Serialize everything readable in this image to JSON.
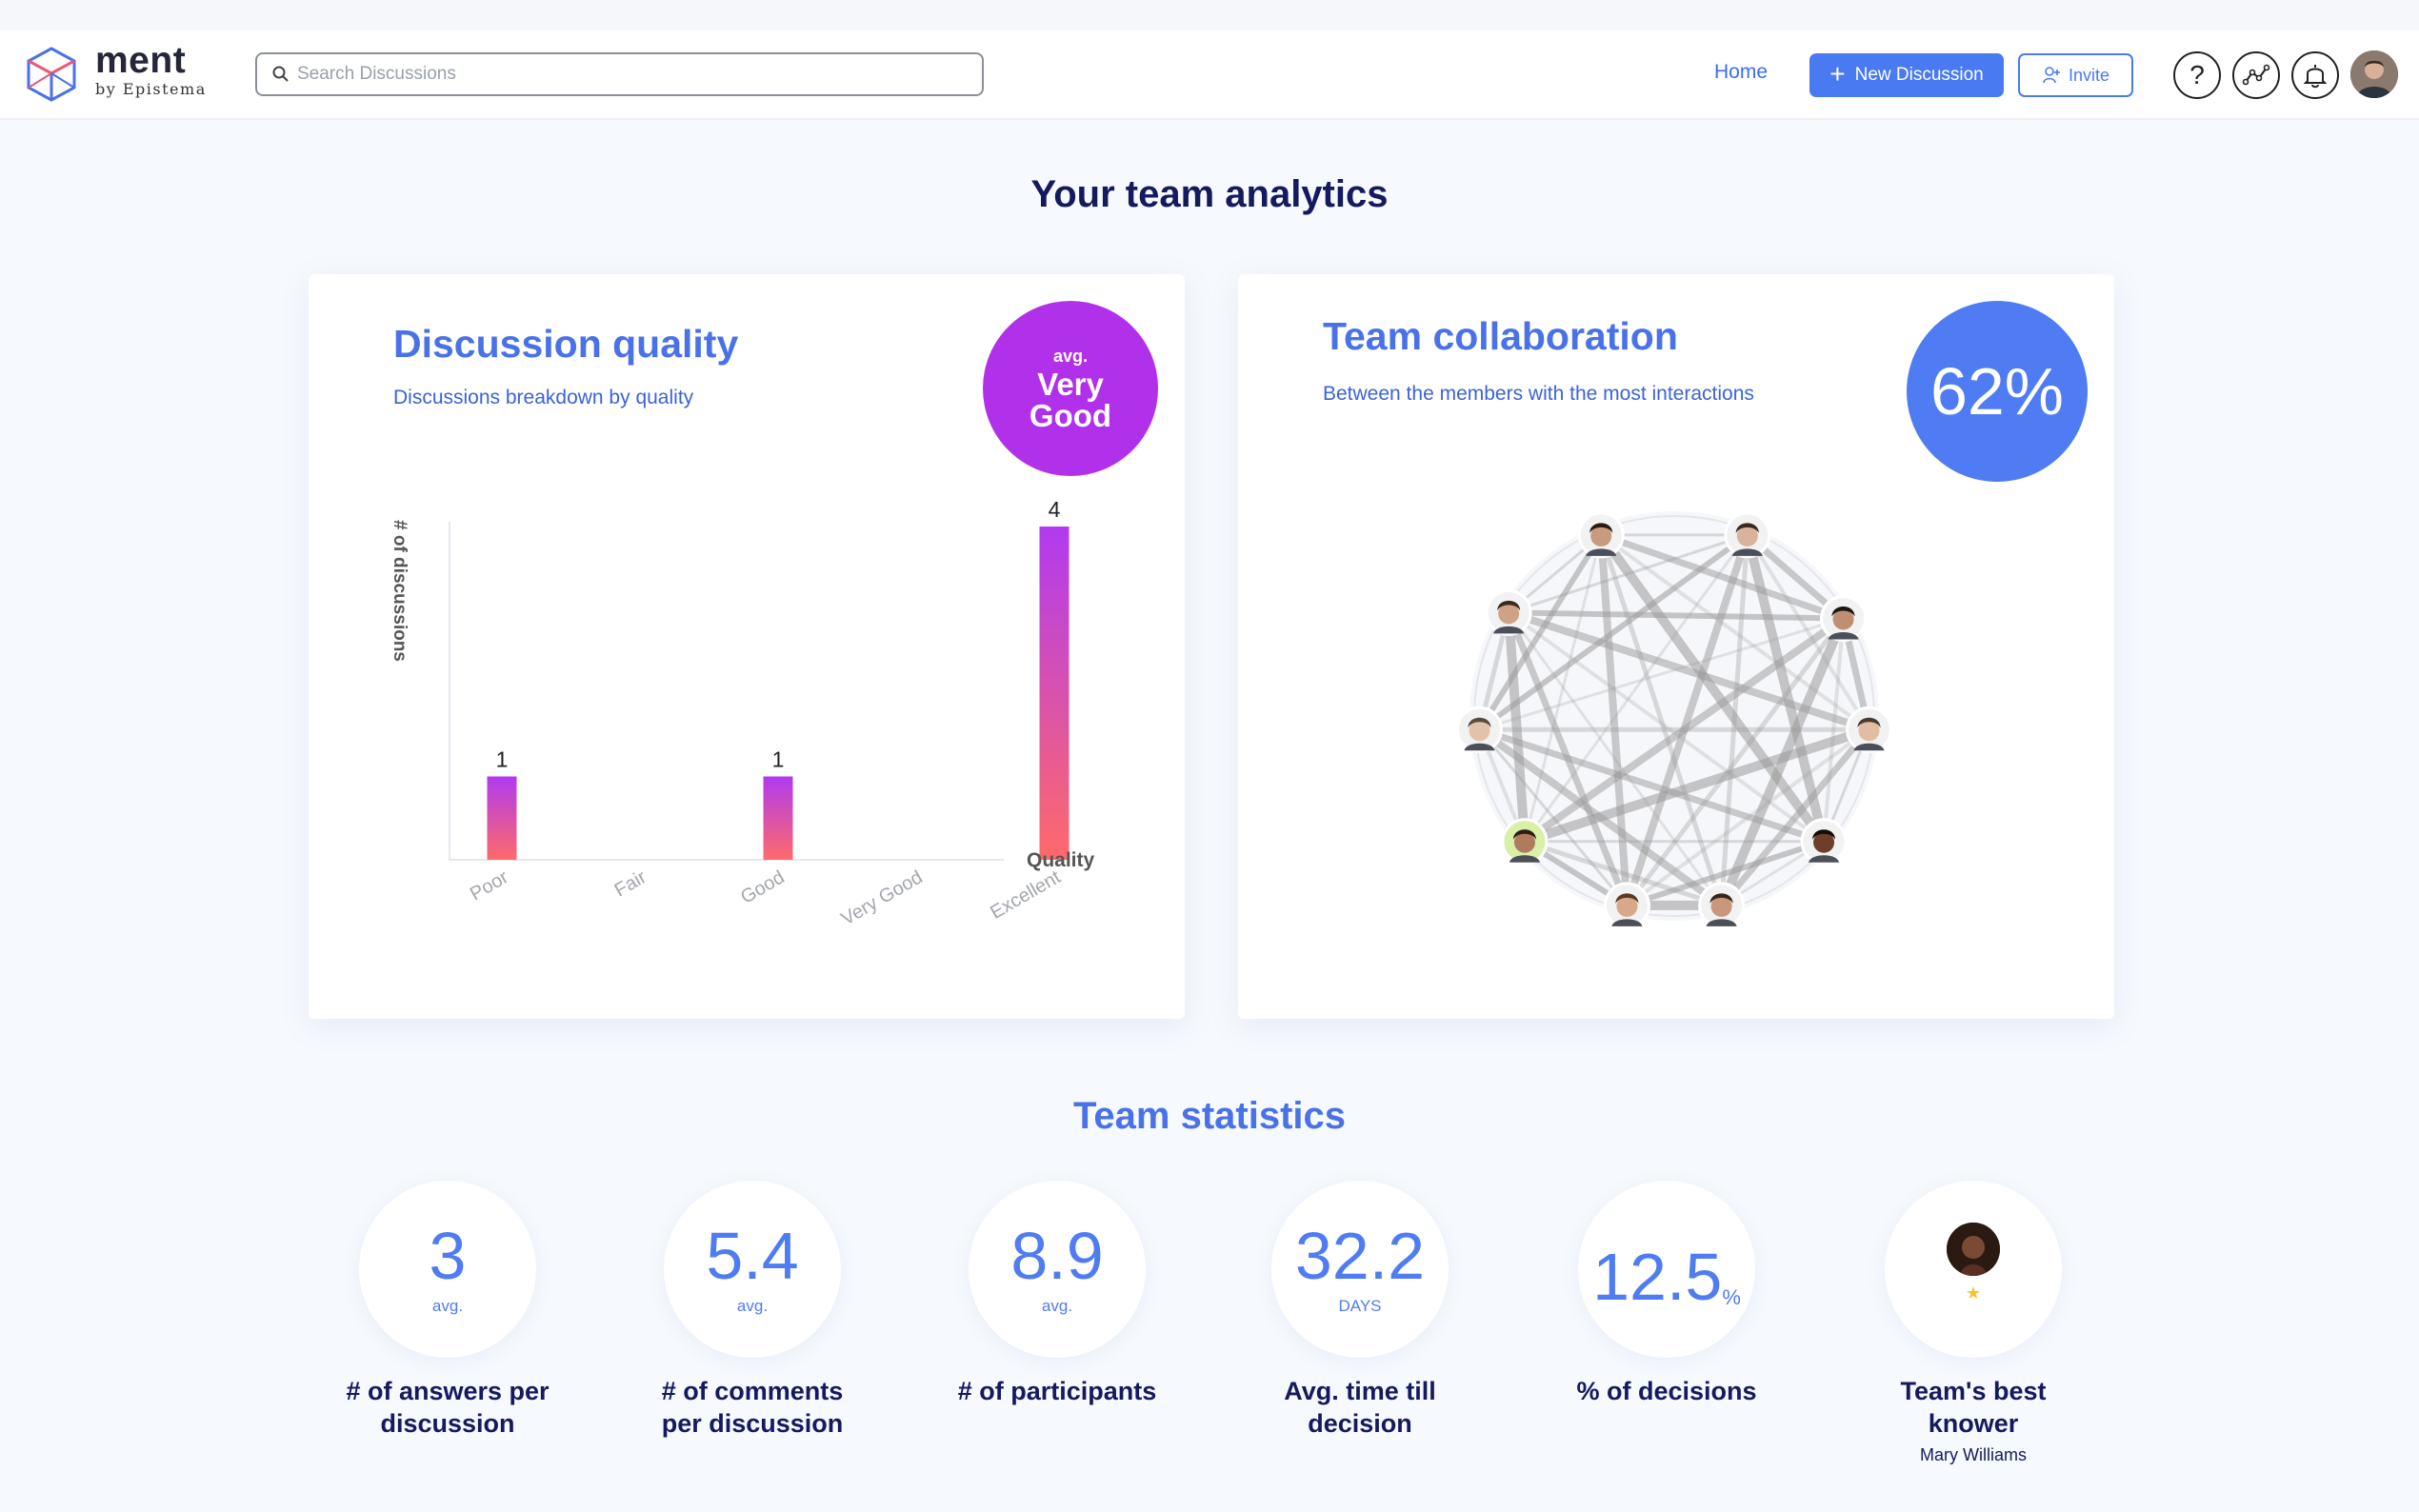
{
  "header": {
    "brand_name": "ment",
    "brand_sub": "by Epistema",
    "search_placeholder": "Search Discussions",
    "search_value": "",
    "nav_home": "Home",
    "new_discussion": "New Discussion",
    "invite": "Invite",
    "help_glyph": "?",
    "icons": [
      "search-icon",
      "plus-icon",
      "invite-user-icon",
      "help-icon",
      "analytics-icon",
      "bell-icon",
      "avatar"
    ]
  },
  "page_title": "Your team analytics",
  "quality_card": {
    "title": "Discussion quality",
    "subtitle": "Discussions breakdown by quality",
    "badge_small": "avg.",
    "badge_line1": "Very",
    "badge_line2": "Good",
    "badge_color": "#b130ea"
  },
  "chart_data": {
    "type": "bar",
    "categories": [
      "Poor",
      "Fair",
      "Good",
      "Very Good",
      "Excellent"
    ],
    "values": [
      1,
      0,
      1,
      0,
      4
    ],
    "data_labels": [
      "1",
      "",
      "1",
      "",
      "4"
    ],
    "xlabel": "Quality",
    "ylabel": "# of discussions",
    "ylim": [
      0,
      4
    ],
    "gradient": [
      "#b13af0",
      "#ff6a6a"
    ]
  },
  "collab_card": {
    "title": "Team collaboration",
    "subtitle": "Between the members with the most interactions",
    "percent": "62%",
    "badge_color": "#4f7cf3",
    "members": 10
  },
  "stats_title": "Team statistics",
  "stats": [
    {
      "value": "3",
      "unit": "avg.",
      "label1": "# of answers per",
      "label2": "discussion"
    },
    {
      "value": "5.4",
      "unit": "avg.",
      "label1": "# of comments",
      "label2": "per discussion"
    },
    {
      "value": "8.9",
      "unit": "avg.",
      "label1": "# of participants",
      "label2": ""
    },
    {
      "value": "32.2",
      "unit": "DAYS",
      "label1": "Avg. time till",
      "label2": "decision"
    },
    {
      "value": "12.5",
      "unit": "%",
      "label1": "% of decisions",
      "label2": ""
    },
    {
      "value": "",
      "unit": "",
      "label1": "Team's best",
      "label2": "knower",
      "person": "Mary Williams"
    }
  ],
  "colors": {
    "accent": "#4a7af2",
    "title": "#141a5e",
    "purple": "#b130ea"
  }
}
